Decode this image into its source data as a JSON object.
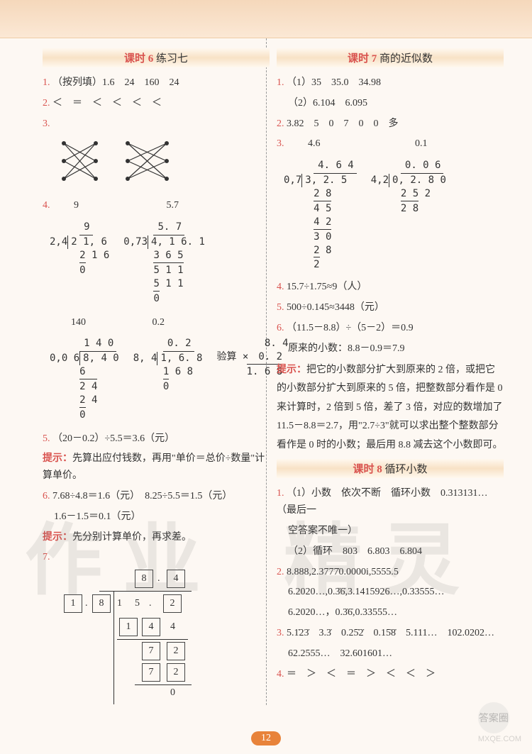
{
  "page_number": "12",
  "watermarks": {
    "left": "作业",
    "right": "精灵",
    "brand_circle": "答案圈",
    "brand_url": "MXQE.COM"
  },
  "left": {
    "lesson": {
      "kt": "课时 6",
      "title": "练习七"
    },
    "q1": {
      "num": "1.",
      "text": "（按列填）1.6　24　160　24"
    },
    "q2": {
      "num": "2.",
      "text": "＜　＝　＜　＜　＜　＜"
    },
    "q3": {
      "num": "3."
    },
    "matching": {
      "left_dots_y": [
        10,
        35,
        60
      ],
      "left_x_a": 10,
      "left_x_b": 55,
      "right_dots_y": [
        10,
        35,
        60
      ],
      "right_x_a": 100,
      "right_x_b": 155,
      "left_lines": [
        [
          10,
          10,
          55,
          35
        ],
        [
          10,
          10,
          55,
          60
        ],
        [
          10,
          35,
          55,
          10
        ],
        [
          10,
          60,
          55,
          10
        ],
        [
          10,
          60,
          55,
          35
        ],
        [
          10,
          35,
          55,
          60
        ]
      ],
      "right_lines": [
        [
          100,
          10,
          155,
          35
        ],
        [
          100,
          10,
          155,
          60
        ],
        [
          100,
          35,
          155,
          10
        ],
        [
          100,
          60,
          155,
          35
        ],
        [
          100,
          35,
          155,
          60
        ],
        [
          100,
          60,
          155,
          10
        ]
      ]
    },
    "q4": {
      "num": "4.",
      "header_a": "9",
      "header_b": "5.7",
      "div_a": {
        "divisor": "2,4",
        "strike": "∕",
        "divq": "9",
        "dividend": "2 1, 6",
        "r1": "2 1 6",
        "r2": "0"
      },
      "div_b": {
        "divisor": "0,73",
        "strike": "∕",
        "divq": "5. 7",
        "dividend": "4, 1 6. 1",
        "r1": "3 6 5",
        "r2": "5 1 1",
        "r3": "5 1 1",
        "r4": "0"
      },
      "header_c": "140",
      "header_d": "0.2",
      "div_c": {
        "divisor": "0,0 6",
        "strike": "∕∕",
        "divq": "1 4 0",
        "dividend": "8, 4 0",
        "r1": "6",
        "r2": "2 4",
        "r3": "2 4",
        "r4": "0"
      },
      "div_d": {
        "divisor": "8, 4",
        "strike": "∕",
        "divq": "0. 2",
        "dividend": "1, 6. 8",
        "r1": "1 6 8",
        "r2": "0"
      },
      "check_label": "验算",
      "check": {
        "a": "8. 4",
        "op": "×　0. 2",
        "res": "1. 6 8"
      }
    },
    "q5": {
      "num": "5.",
      "expr": "（20－0.2）÷5.5＝3.6（元）",
      "hint_label": "提示：",
      "hint": "先算出应付钱数，再用\"单价＝总价÷数量\"计算单价。"
    },
    "q6": {
      "num": "6.",
      "l1": "7.68÷4.8＝1.6（元）　8.25÷5.5＝1.5（元）",
      "l2": "1.6－1.5＝0.1（元）",
      "hint_label": "提示：",
      "hint": "先分别计算单价，再求差。"
    },
    "q7": {
      "num": "7.",
      "quot": [
        "8",
        ".",
        "4"
      ],
      "divisor": "1 . 8",
      "dividend": [
        "1",
        "5",
        ".",
        "2"
      ],
      "row2": [
        "1",
        "4",
        "4"
      ],
      "row3": [
        "7",
        "2"
      ],
      "row4": [
        "7",
        "2"
      ],
      "zero": "0"
    }
  },
  "right": {
    "lesson": {
      "kt": "课时 7",
      "title": "商的近似数"
    },
    "q1": {
      "num": "1.",
      "l1": "（1）35　35.0　34.98",
      "l2": "（2）6.104　6.095"
    },
    "q2": {
      "num": "2.",
      "text": "3.82　5　0　7　0　0　多"
    },
    "q3": {
      "num": "3.",
      "header_a": "4.6",
      "header_b": "0.1",
      "div_a": {
        "divisor": "0,7",
        "strike": "∕",
        "divq": "4. 6 4",
        "dividend": "3, 2. 5",
        "r1": "2 8",
        "r2": "4 5",
        "r3": "4 2",
        "r4": "3 0",
        "r5": "2 8",
        "r6": "2"
      },
      "div_b": {
        "divisor": "4,2",
        "strike": "∕",
        "divq": "0. 0 6",
        "dividend": "0, 2. 8 0",
        "r1": "2 5 2",
        "r2": "2 8"
      }
    },
    "q4": {
      "num": "4.",
      "text": "15.7÷1.75≈9（人）"
    },
    "q5": {
      "num": "5.",
      "text": "500÷0.145≈3448（元）"
    },
    "q6": {
      "num": "6.",
      "l1": "（11.5－8.8）÷（5－2）＝0.9",
      "l2": "原来的小数：8.8－0.9＝7.9",
      "hint_label": "提示：",
      "hint": "把它的小数部分扩大到原来的 2 倍，或把它的小数部分扩大到原来的 5 倍，把整数部分看作是 0 来计算时，2 倍到 5 倍，差了 3 倍，对应的数增加了 11.5－8.8＝2.7，用\"2.7÷3\"就可以求出整个整数部分看作是 0 时的小数；最后用 8.8 减去这个小数即可。"
    },
    "lesson2": {
      "kt": "课时 8",
      "title": "循环小数"
    },
    "b_q1": {
      "num": "1.",
      "l1": "（1）小数　依次不断　循环小数　0.313131…（最后一",
      "l2": "空答案不唯一）",
      "l3": "（2）循环　803　6.803　6.804"
    },
    "b_q2": {
      "num": "2.",
      "l1": "8.888,2.3777̇0.0000i,5555.5",
      "l2": "6.2020…,0.3̇6̇,3.1415926…,0.33555…",
      "l3": "6.2020…，0.3̇6̇,0.33555…"
    },
    "b_q3": {
      "num": "3.",
      "l1": "5.1̇23̇　3.3̇　0.25̇2̇　0.15̇8̇　5.111…　102.0202…",
      "l2": "62.2555…　32.601601…"
    },
    "b_q4": {
      "num": "4.",
      "text": "＝　＞　＜　＝　＞　＜　＜　＞"
    }
  }
}
